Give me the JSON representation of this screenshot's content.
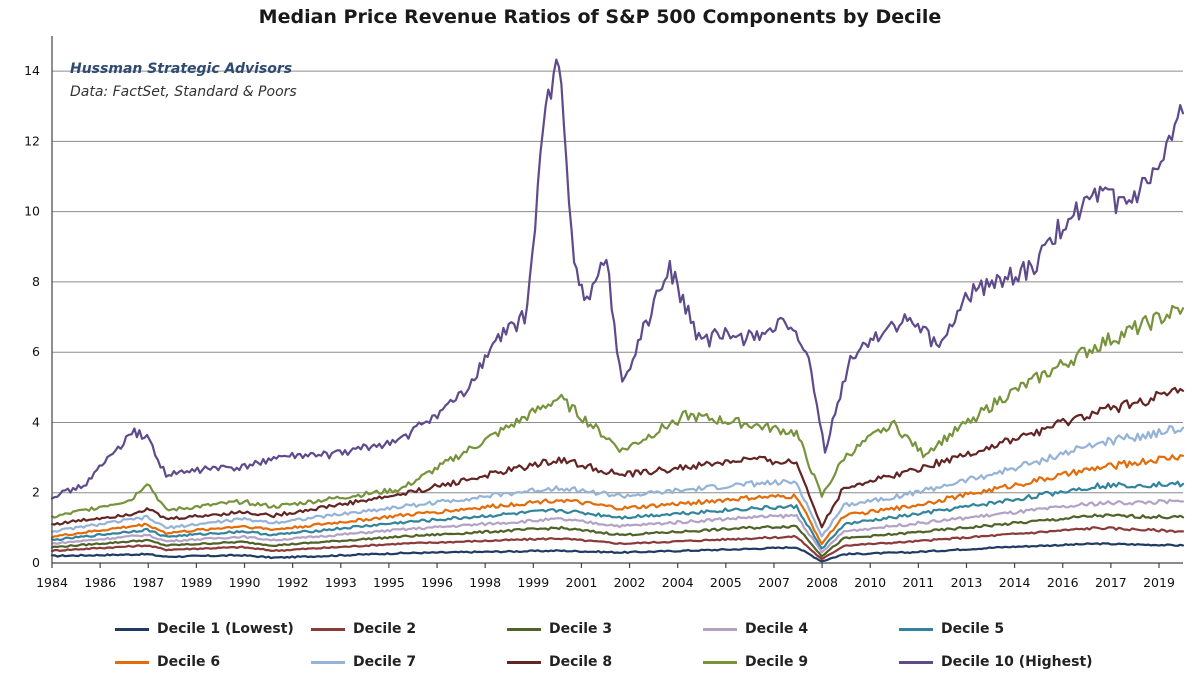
{
  "chart_data": {
    "type": "line",
    "title": "Median Price Revenue Ratios of S&P 500 Components by Decile",
    "source_line1": "Hussman Strategic Advisors",
    "source_line2": "Data: FactSet, Standard & Poors",
    "xlabel": "",
    "ylabel": "",
    "x_tick_labels": [
      "1984",
      "1986",
      "1987",
      "1989",
      "1990",
      "1992",
      "1993",
      "1995",
      "1996",
      "1998",
      "1999",
      "2001",
      "2002",
      "2004",
      "2005",
      "2007",
      "2008",
      "2010",
      "2011",
      "2013",
      "2014",
      "2016",
      "2017",
      "2019"
    ],
    "y_ticks": [
      0,
      2,
      4,
      6,
      8,
      10,
      12,
      14
    ],
    "xlim": [
      1984.0,
      2019.7
    ],
    "ylim": [
      0,
      15
    ],
    "grid": true,
    "legend_position": "bottom",
    "series": [
      {
        "name": "Decile 1 (Lowest)",
        "color": "#1f3b63",
        "x": [
          1984,
          1987.0,
          1987.6,
          1990,
          1991,
          1995,
          2000,
          2002,
          2006,
          2007.5,
          2008.3,
          2009.0,
          2011,
          2014,
          2017,
          2019.7
        ],
        "y": [
          0.2,
          0.25,
          0.18,
          0.22,
          0.15,
          0.28,
          0.35,
          0.3,
          0.4,
          0.45,
          0.05,
          0.25,
          0.3,
          0.45,
          0.55,
          0.5
        ]
      },
      {
        "name": "Decile 2",
        "color": "#8b3a3a",
        "x": [
          1984,
          1987.0,
          1987.6,
          1990,
          1991,
          1995,
          2000,
          2002,
          2006,
          2007.5,
          2008.3,
          2009.0,
          2011,
          2014,
          2017,
          2019.7
        ],
        "y": [
          0.35,
          0.5,
          0.38,
          0.45,
          0.35,
          0.55,
          0.7,
          0.55,
          0.7,
          0.75,
          0.1,
          0.5,
          0.6,
          0.8,
          1.0,
          0.9
        ]
      },
      {
        "name": "Decile 3",
        "color": "#4f6228",
        "x": [
          1984,
          1987.0,
          1987.6,
          1990,
          1991,
          1995,
          2000,
          2002,
          2006,
          2007.5,
          2008.3,
          2009.0,
          2011,
          2014,
          2017,
          2019.7
        ],
        "y": [
          0.45,
          0.65,
          0.5,
          0.6,
          0.5,
          0.75,
          1.0,
          0.8,
          1.0,
          1.05,
          0.2,
          0.7,
          0.85,
          1.1,
          1.35,
          1.3
        ]
      },
      {
        "name": "Decile 4",
        "color": "#b3a2c7",
        "x": [
          1984,
          1987.0,
          1987.6,
          1990,
          1991,
          1995,
          2000,
          2002,
          2006,
          2007.5,
          2008.3,
          2009.0,
          2011,
          2014,
          2017,
          2019.7
        ],
        "y": [
          0.55,
          0.8,
          0.62,
          0.75,
          0.65,
          0.95,
          1.25,
          1.05,
          1.3,
          1.35,
          0.3,
          0.9,
          1.1,
          1.4,
          1.7,
          1.75
        ]
      },
      {
        "name": "Decile 5",
        "color": "#31849b",
        "x": [
          1984,
          1987.0,
          1987.6,
          1990,
          1991,
          1995,
          2000,
          2002,
          2006,
          2007.5,
          2008.3,
          2009.0,
          2011,
          2014,
          2017,
          2019.7
        ],
        "y": [
          0.65,
          0.95,
          0.75,
          0.9,
          0.8,
          1.15,
          1.5,
          1.3,
          1.55,
          1.6,
          0.4,
          1.1,
          1.35,
          1.75,
          2.2,
          2.25
        ]
      },
      {
        "name": "Decile 6",
        "color": "#e36c09",
        "x": [
          1984,
          1987.0,
          1987.6,
          1990,
          1991,
          1995,
          2000,
          2002,
          2006,
          2007.5,
          2008.3,
          2009.0,
          2011,
          2014,
          2017,
          2019.7
        ],
        "y": [
          0.75,
          1.1,
          0.85,
          1.05,
          0.95,
          1.35,
          1.8,
          1.55,
          1.85,
          1.9,
          0.55,
          1.35,
          1.6,
          2.15,
          2.7,
          3.05
        ]
      },
      {
        "name": "Decile 7",
        "color": "#95b3d7",
        "x": [
          1984,
          1987.0,
          1987.6,
          1990,
          1991,
          1995,
          2000,
          2002,
          2006,
          2007.5,
          2008.3,
          2009.0,
          2011,
          2014,
          2017,
          2019.7
        ],
        "y": [
          0.9,
          1.3,
          1.0,
          1.25,
          1.15,
          1.6,
          2.15,
          1.9,
          2.25,
          2.3,
          0.75,
          1.65,
          1.95,
          2.6,
          3.4,
          3.85
        ]
      },
      {
        "name": "Decile 8",
        "color": "#632523",
        "x": [
          1984,
          1986.5,
          1987.0,
          1987.6,
          1990,
          1991,
          1995,
          2000,
          2002,
          2006,
          2007.5,
          2008.3,
          2009.0,
          2011,
          2014,
          2017,
          2019.7
        ],
        "y": [
          1.1,
          1.4,
          1.55,
          1.25,
          1.45,
          1.35,
          1.95,
          2.95,
          2.5,
          2.95,
          2.85,
          1.05,
          2.15,
          2.6,
          3.4,
          4.3,
          4.9
        ]
      },
      {
        "name": "Decile 9",
        "color": "#77933c",
        "x": [
          1984,
          1986.5,
          1987.0,
          1987.6,
          1990,
          1991,
          1995,
          2000,
          2002,
          2004,
          2006,
          2007.5,
          2008.3,
          2009.0,
          2010.5,
          2011.5,
          2014,
          2017,
          2019.7
        ],
        "y": [
          1.3,
          1.8,
          2.3,
          1.5,
          1.75,
          1.6,
          2.1,
          4.7,
          3.2,
          4.2,
          3.95,
          3.7,
          1.9,
          3.0,
          4.0,
          3.1,
          4.7,
          6.2,
          7.25
        ]
      },
      {
        "name": "Decile 10 (Highest)",
        "color": "#5f4b8b",
        "x": [
          1984,
          1985.0,
          1986.0,
          1986.6,
          1987.0,
          1987.6,
          1989,
          1990,
          1991,
          1993,
          1995,
          1997,
          1998,
          1999,
          1999.5,
          2000.0,
          2000.4,
          2000.8,
          2001.5,
          2002,
          2002.5,
          2003.5,
          2004.5,
          2005,
          2006,
          2007,
          2007.8,
          2008.4,
          2009.2,
          2010,
          2011,
          2012,
          2013,
          2014,
          2015,
          2016,
          2017,
          2018,
          2019.0,
          2019.7
        ],
        "y": [
          1.9,
          2.2,
          3.2,
          3.7,
          3.6,
          2.5,
          2.7,
          2.7,
          3.0,
          3.1,
          3.5,
          4.8,
          6.3,
          7.1,
          12.5,
          14.4,
          9.2,
          7.5,
          8.6,
          5.0,
          6.3,
          8.4,
          6.2,
          6.5,
          6.4,
          6.8,
          6.1,
          3.2,
          5.8,
          6.5,
          6.9,
          6.2,
          7.7,
          8.1,
          8.4,
          9.8,
          10.4,
          10.2,
          11.2,
          12.8
        ]
      }
    ]
  }
}
